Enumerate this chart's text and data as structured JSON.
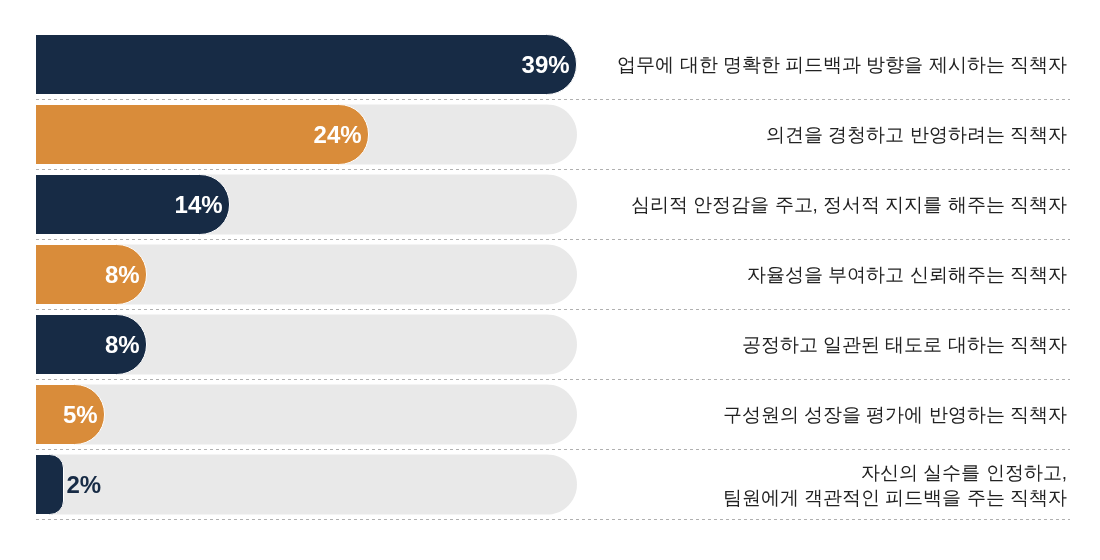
{
  "chart_data": {
    "type": "bar",
    "orientation": "horizontal",
    "categories": [
      "업무에 대한 명확한 피드백과 방향을 제시하는 직책자",
      "의견을 경청하고 반영하려는 직책자",
      "심리적 안정감을 주고, 정서적 지지를 해주는 직책자",
      "자율성을 부여하고 신뢰해주는 직책자",
      "공정하고 일관된 태도로 대하는 직책자",
      "구성원의 성장을 평가에 반영하는 직책자",
      "자신의 실수를 인정하고,\n팀원에게 객관적인 피드백을 주는 직책자"
    ],
    "values": [
      39,
      24,
      14,
      8,
      8,
      5,
      2
    ],
    "colors": [
      "#172b45",
      "#d98c3a",
      "#172b45",
      "#d98c3a",
      "#172b45",
      "#d98c3a",
      "#172b45"
    ],
    "value_labels": [
      "39%",
      "24%",
      "14%",
      "8%",
      "8%",
      "5%",
      "2%"
    ],
    "grid": "y"
  }
}
